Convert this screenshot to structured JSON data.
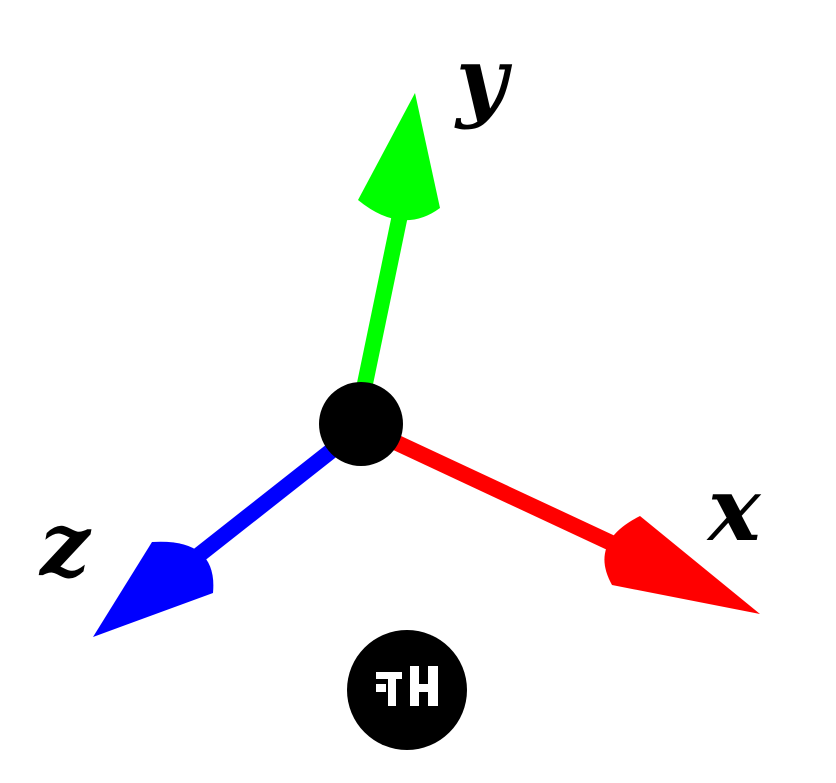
{
  "axes": {
    "x": {
      "label": "x",
      "color": "#ff0000"
    },
    "y": {
      "label": "y",
      "color": "#00ff00"
    },
    "z": {
      "label": "z",
      "color": "#0000ff"
    }
  },
  "origin": {
    "color": "#000000"
  },
  "logo": {
    "icon": "fh-logo-icon",
    "color": "#000000"
  }
}
